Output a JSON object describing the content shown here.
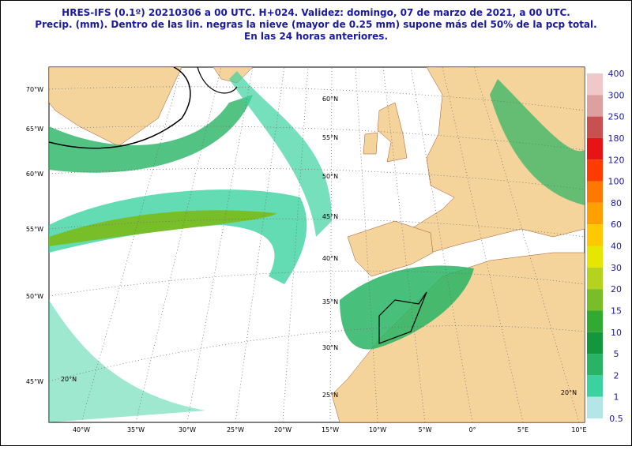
{
  "header": {
    "lines": [
      "HRES-IFS (0.1º) 20210306 a 00 UTC.  H+024. Validez: domingo, 07 de marzo de 2021,  a  00 UTC.",
      "Precip. (mm). Dentro de las lin. negras la nieve (mayor de 0.25 mm) supone más del 50% de la pcp total.",
      "En las 24 horas anteriores."
    ]
  },
  "map": {
    "left_labels": [
      "70°W",
      "65°W",
      "60°W",
      "55°W",
      "50°W",
      "45°W"
    ],
    "bottom_labels": [
      "40°W",
      "35°W",
      "30°W",
      "25°W",
      "20°W",
      "15°W",
      "10°W",
      "5°W",
      "0°",
      "5°E",
      "10°E"
    ],
    "lat_labels": [
      "60°N",
      "55°N",
      "50°N",
      "45°N",
      "40°N",
      "35°N",
      "30°N",
      "25°N",
      "20°N",
      "20°N"
    ]
  },
  "colorbar": {
    "labels": [
      "400",
      "300",
      "250",
      "180",
      "120",
      "100",
      "80",
      "60",
      "40",
      "30",
      "20",
      "15",
      "10",
      "5",
      "2",
      "1",
      "0.5"
    ],
    "colors": [
      "#f0c8c8",
      "#dca0a0",
      "#c85050",
      "#e61414",
      "#ff3c00",
      "#ff7800",
      "#ffa000",
      "#ffc800",
      "#e6e600",
      "#b4d21e",
      "#78be28",
      "#32aa32",
      "#14963c",
      "#28b464",
      "#3cd2a0",
      "#b4e6e6"
    ]
  }
}
